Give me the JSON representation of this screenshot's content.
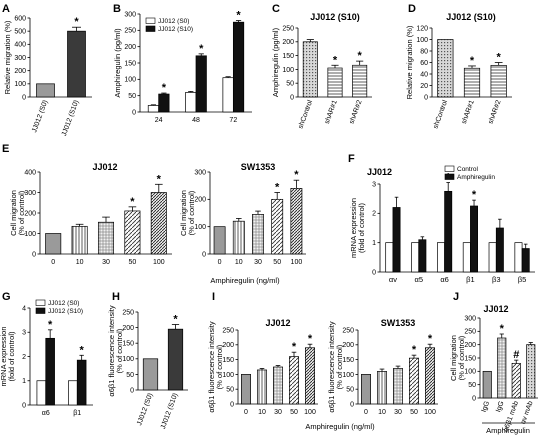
{
  "chart_data": [
    {
      "id": "A",
      "panel_label": "A",
      "type": "bar",
      "title": "",
      "ylabel": "Relative migration (%)",
      "xlabel": "",
      "ylim": [
        0,
        600
      ],
      "yticks": [
        0,
        100,
        200,
        300,
        400,
        500,
        600
      ],
      "categories": [
        "JJ012 (S0)",
        "JJ012 (S10)"
      ],
      "values": [
        100,
        500
      ],
      "errors": [
        0,
        30
      ],
      "styles": [
        "dgray",
        "dark"
      ],
      "sig": [
        false,
        true
      ],
      "sig_text": [
        "",
        "*"
      ],
      "xrot": true,
      "legend": []
    },
    {
      "id": "B",
      "panel_label": "B",
      "type": "bar",
      "title": "",
      "ylabel": "Amphiregulin (pg/ml)",
      "xlabel": "",
      "ylim": [
        0,
        300
      ],
      "yticks": [
        0,
        50,
        100,
        150,
        200,
        250,
        300
      ],
      "categories": [
        "24",
        "48",
        "72"
      ],
      "series": [
        {
          "name": "JJ012 (S0)",
          "values": [
            20,
            60,
            105
          ],
          "errors": [
            2,
            3,
            3
          ],
          "style": "white",
          "sig": [
            false,
            false,
            false
          ]
        },
        {
          "name": "JJ012 (S10)",
          "values": [
            55,
            172,
            275
          ],
          "errors": [
            3,
            6,
            5
          ],
          "style": "black",
          "sig": [
            true,
            true,
            true
          ]
        }
      ],
      "xrot": false,
      "legend": [
        "JJ012 (S0)",
        "JJ012 (S10)"
      ]
    },
    {
      "id": "C",
      "panel_label": "C",
      "type": "bar",
      "title": "JJ012 (S10)",
      "ylabel": "Amphiregulin (pg/ml)",
      "xlabel": "",
      "ylim": [
        0,
        250
      ],
      "yticks": [
        0,
        50,
        100,
        150,
        200,
        250
      ],
      "categories": [
        "shControl",
        "shAR#1",
        "shAR#2"
      ],
      "values": [
        200,
        105,
        115
      ],
      "errors": [
        8,
        10,
        15
      ],
      "styles": [
        "dots",
        "hline",
        "hline"
      ],
      "sig": [
        false,
        true,
        true
      ],
      "sig_text": [
        "",
        "*",
        "*"
      ],
      "xrot": true,
      "legend": []
    },
    {
      "id": "D",
      "panel_label": "D",
      "type": "bar",
      "title": "JJ012 (S10)",
      "ylabel": "Relative migration (%)",
      "xlabel": "",
      "ylim": [
        0,
        120
      ],
      "yticks": [
        0,
        20,
        40,
        60,
        80,
        100,
        120
      ],
      "categories": [
        "shControl",
        "shAR#1",
        "shAR#2"
      ],
      "values": [
        100,
        50,
        55
      ],
      "errors": [
        0,
        4,
        5
      ],
      "styles": [
        "dots",
        "hline",
        "hline"
      ],
      "sig": [
        false,
        true,
        true
      ],
      "sig_text": [
        "",
        "*",
        "*"
      ],
      "xrot": true,
      "legend": []
    },
    {
      "id": "E1",
      "panel_label": "E",
      "type": "bar",
      "title": "JJ012",
      "ylabel": "Cell migration (% of control)",
      "xlabel": "",
      "ylim": [
        0,
        400
      ],
      "yticks": [
        0,
        100,
        200,
        300,
        400
      ],
      "categories": [
        "0",
        "10",
        "30",
        "50",
        "100"
      ],
      "values": [
        100,
        135,
        155,
        210,
        300
      ],
      "errors": [
        0,
        10,
        25,
        20,
        40
      ],
      "styles": [
        "dgray",
        "vline",
        "grid",
        "diag",
        "diag2"
      ],
      "sig": [
        false,
        false,
        false,
        true,
        true
      ],
      "sig_text": [
        "",
        "",
        "",
        "*",
        "*"
      ],
      "xrot": false,
      "legend": []
    },
    {
      "id": "E2",
      "panel_label": "",
      "type": "bar",
      "title": "SW1353",
      "ylabel": "Cell migration (% of control)",
      "xlabel": "",
      "ylim": [
        0,
        300
      ],
      "yticks": [
        0,
        100,
        200,
        300
      ],
      "categories": [
        "0",
        "10",
        "30",
        "50",
        "100"
      ],
      "values": [
        100,
        120,
        145,
        200,
        240
      ],
      "errors": [
        0,
        10,
        12,
        25,
        30
      ],
      "styles": [
        "dgray",
        "vline",
        "grid",
        "diag",
        "diag2"
      ],
      "sig": [
        false,
        false,
        false,
        true,
        true
      ],
      "sig_text": [
        "",
        "",
        "",
        "*",
        "*"
      ],
      "xrot": false,
      "legend": []
    },
    {
      "id": "F",
      "panel_label": "F",
      "type": "bar",
      "title": "JJ012",
      "ylabel": "mRNA expression (fold of control)",
      "xlabel": "",
      "ylim": [
        0,
        3
      ],
      "yticks": [
        0,
        1,
        2,
        3
      ],
      "categories": [
        "αv",
        "α5",
        "α6",
        "β1",
        "β3",
        "β5"
      ],
      "series": [
        {
          "name": "Control",
          "values": [
            1,
            1,
            1,
            1,
            1,
            1
          ],
          "errors": [
            0,
            0,
            0,
            0,
            0,
            0
          ],
          "style": "white",
          "sig": [
            false,
            false,
            false,
            false,
            false,
            false
          ]
        },
        {
          "name": "Amphiregulin",
          "values": [
            2.2,
            1.1,
            2.75,
            2.25,
            1.5,
            0.8
          ],
          "errors": [
            0.35,
            0.1,
            0.3,
            0.2,
            0.3,
            0.15
          ],
          "style": "black",
          "sig": [
            false,
            false,
            true,
            true,
            false,
            false
          ]
        }
      ],
      "xrot": false,
      "legend": [
        "Control",
        "Amphiregulin"
      ]
    },
    {
      "id": "G",
      "panel_label": "G",
      "type": "bar",
      "title": "",
      "ylabel": "mRNA expression (fold of control)",
      "xlabel": "",
      "ylim": [
        0,
        4
      ],
      "yticks": [
        0,
        1,
        2,
        3,
        4
      ],
      "categories": [
        "α6",
        "β1"
      ],
      "series": [
        {
          "name": "JJ012 (S0)",
          "values": [
            1,
            1
          ],
          "errors": [
            0,
            0
          ],
          "style": "white",
          "sig": [
            false,
            false
          ]
        },
        {
          "name": "JJ012 (S10)",
          "values": [
            2.75,
            1.85
          ],
          "errors": [
            0.35,
            0.2
          ],
          "style": "black",
          "sig": [
            true,
            true
          ]
        }
      ],
      "xrot": false,
      "legend": [
        "JJ012 (S0)",
        "JJ012 (S10)"
      ]
    },
    {
      "id": "H",
      "panel_label": "H",
      "type": "bar",
      "title": "",
      "ylabel": "α6β1 fluorescence intensity (% of control)",
      "xlabel": "",
      "ylim": [
        0,
        250
      ],
      "yticks": [
        0,
        50,
        100,
        150,
        200,
        250
      ],
      "categories": [
        "JJ012 (S0)",
        "JJ012 (S10)"
      ],
      "values": [
        100,
        195
      ],
      "errors": [
        0,
        15
      ],
      "styles": [
        "dgray",
        "dark"
      ],
      "sig": [
        false,
        true
      ],
      "sig_text": [
        "",
        "*"
      ],
      "xrot": true,
      "legend": []
    },
    {
      "id": "I1",
      "panel_label": "I",
      "type": "bar",
      "title": "JJ012",
      "ylabel": "α6β1 fluorescence intensity (% of control)",
      "xlabel": "",
      "ylim": [
        0,
        250
      ],
      "yticks": [
        0,
        50,
        100,
        150,
        200,
        250
      ],
      "categories": [
        "0",
        "10",
        "30",
        "50",
        "100"
      ],
      "values": [
        100,
        115,
        125,
        160,
        190
      ],
      "errors": [
        0,
        5,
        5,
        15,
        12
      ],
      "styles": [
        "dgray",
        "vline",
        "grid",
        "diag",
        "diag2"
      ],
      "sig": [
        false,
        false,
        false,
        true,
        true
      ],
      "sig_text": [
        "",
        "",
        "",
        "*",
        "*"
      ],
      "xrot": false,
      "legend": []
    },
    {
      "id": "I2",
      "panel_label": "",
      "type": "bar",
      "title": "SW1353",
      "ylabel": "α6β1 fluorescence intensity (% of control)",
      "xlabel": "",
      "ylim": [
        0,
        250
      ],
      "yticks": [
        0,
        50,
        100,
        150,
        200,
        250
      ],
      "categories": [
        "0",
        "10",
        "30",
        "50",
        "100"
      ],
      "values": [
        100,
        110,
        120,
        155,
        190
      ],
      "errors": [
        0,
        8,
        8,
        10,
        12
      ],
      "styles": [
        "dgray",
        "vline",
        "grid",
        "diag",
        "diag2"
      ],
      "sig": [
        false,
        false,
        false,
        true,
        true
      ],
      "sig_text": [
        "",
        "",
        "",
        "*",
        "*"
      ],
      "xrot": false,
      "legend": []
    },
    {
      "id": "J",
      "panel_label": "J",
      "type": "bar",
      "title": "JJ012",
      "ylabel": "Cell migration (% of control)",
      "xlabel": "",
      "ylim": [
        0,
        300
      ],
      "yticks": [
        0,
        50,
        100,
        150,
        200,
        250,
        300
      ],
      "categories": [
        "IgG",
        "IgG",
        "α6β1 mAb",
        "αv mAb"
      ],
      "values": [
        100,
        225,
        130,
        200
      ],
      "errors": [
        0,
        15,
        12,
        8
      ],
      "styles": [
        "dgray",
        "grid",
        "diag",
        "dots"
      ],
      "sig": [
        false,
        true,
        true,
        false
      ],
      "sig_text": [
        "",
        "*",
        "#",
        ""
      ],
      "xrot": true,
      "legend": []
    }
  ],
  "shared_xlabels": {
    "E": "Amphiregulin (ng/ml)",
    "I": "Amphiregulin (ng/ml)",
    "J": "Amphiregulin"
  }
}
